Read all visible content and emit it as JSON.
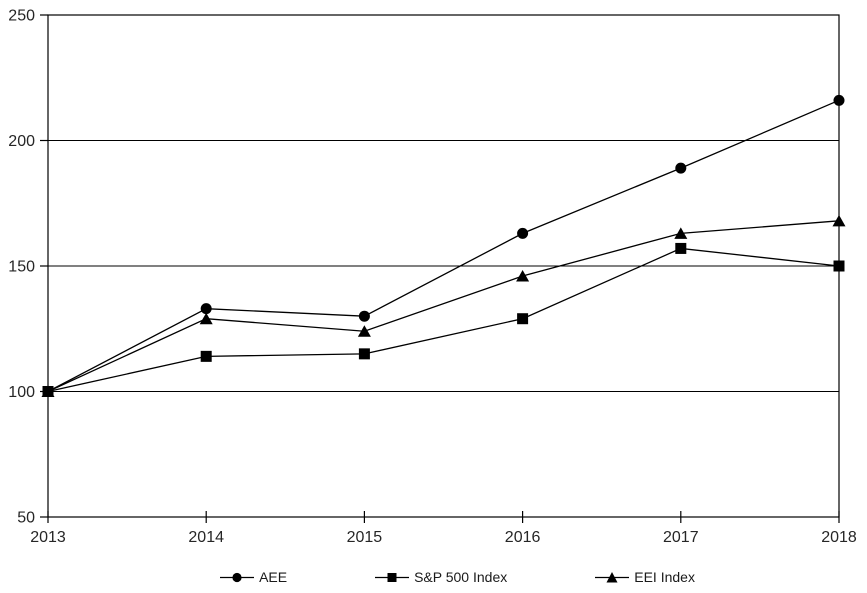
{
  "chart_data": {
    "type": "line",
    "title": "",
    "xlabel": "",
    "ylabel": "",
    "x": [
      2013,
      2014,
      2015,
      2016,
      2017,
      2018
    ],
    "series": [
      {
        "name": "AEE",
        "marker": "circle",
        "values": [
          100,
          133,
          130,
          163,
          189,
          216
        ]
      },
      {
        "name": "S&P 500 Index",
        "marker": "square",
        "values": [
          100,
          114,
          115,
          129,
          157,
          150
        ]
      },
      {
        "name": "EEI Index",
        "marker": "triangle",
        "values": [
          100,
          129,
          124,
          146,
          163,
          168
        ]
      }
    ],
    "ylim": [
      50,
      250
    ],
    "yticks": [
      50,
      100,
      150,
      200,
      250
    ],
    "xticks": [
      2013,
      2014,
      2015,
      2016,
      2017,
      2018
    ],
    "grid": true,
    "gridlines_at": [
      100,
      150,
      200
    ],
    "plot_border": true,
    "legend_position": "bottom",
    "line_color": "#000000",
    "marker_color": "#000000",
    "axis_color": "#000000",
    "text_color": "#262626",
    "background": "#ffffff"
  }
}
